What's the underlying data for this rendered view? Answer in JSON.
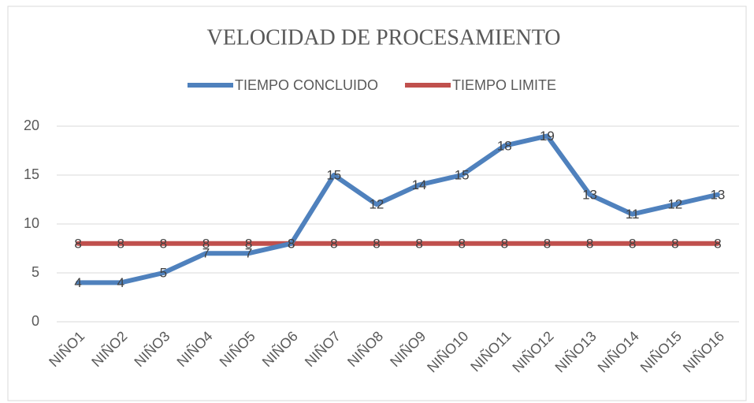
{
  "chart_data": {
    "type": "line",
    "title": "VELOCIDAD DE PROCESAMIENTO",
    "categories": [
      "NIÑO1",
      "NIÑO2",
      "NIÑO3",
      "NIÑO4",
      "NIÑO5",
      "NIÑO6",
      "NIÑO7",
      "NIÑO8",
      "NIÑO9",
      "NIÑO10",
      "NIÑO11",
      "NIÑO12",
      "NIÑO13",
      "NIÑO14",
      "NIÑO15",
      "NIÑO16"
    ],
    "series": [
      {
        "name": "TIEMPO CONCLUIDO",
        "color": "#4f81bd",
        "values": [
          4,
          4,
          5,
          7,
          7,
          8,
          15,
          12,
          14,
          15,
          18,
          19,
          13,
          11,
          12,
          13
        ]
      },
      {
        "name": "TIEMPO LIMITE",
        "color": "#c0504d",
        "values": [
          8,
          8,
          8,
          8,
          8,
          8,
          8,
          8,
          8,
          8,
          8,
          8,
          8,
          8,
          8,
          8
        ]
      }
    ],
    "ylim": [
      0,
      20
    ],
    "yticks": [
      0,
      5,
      10,
      15,
      20
    ],
    "grid": true,
    "legend": "top",
    "data_labels": true
  }
}
